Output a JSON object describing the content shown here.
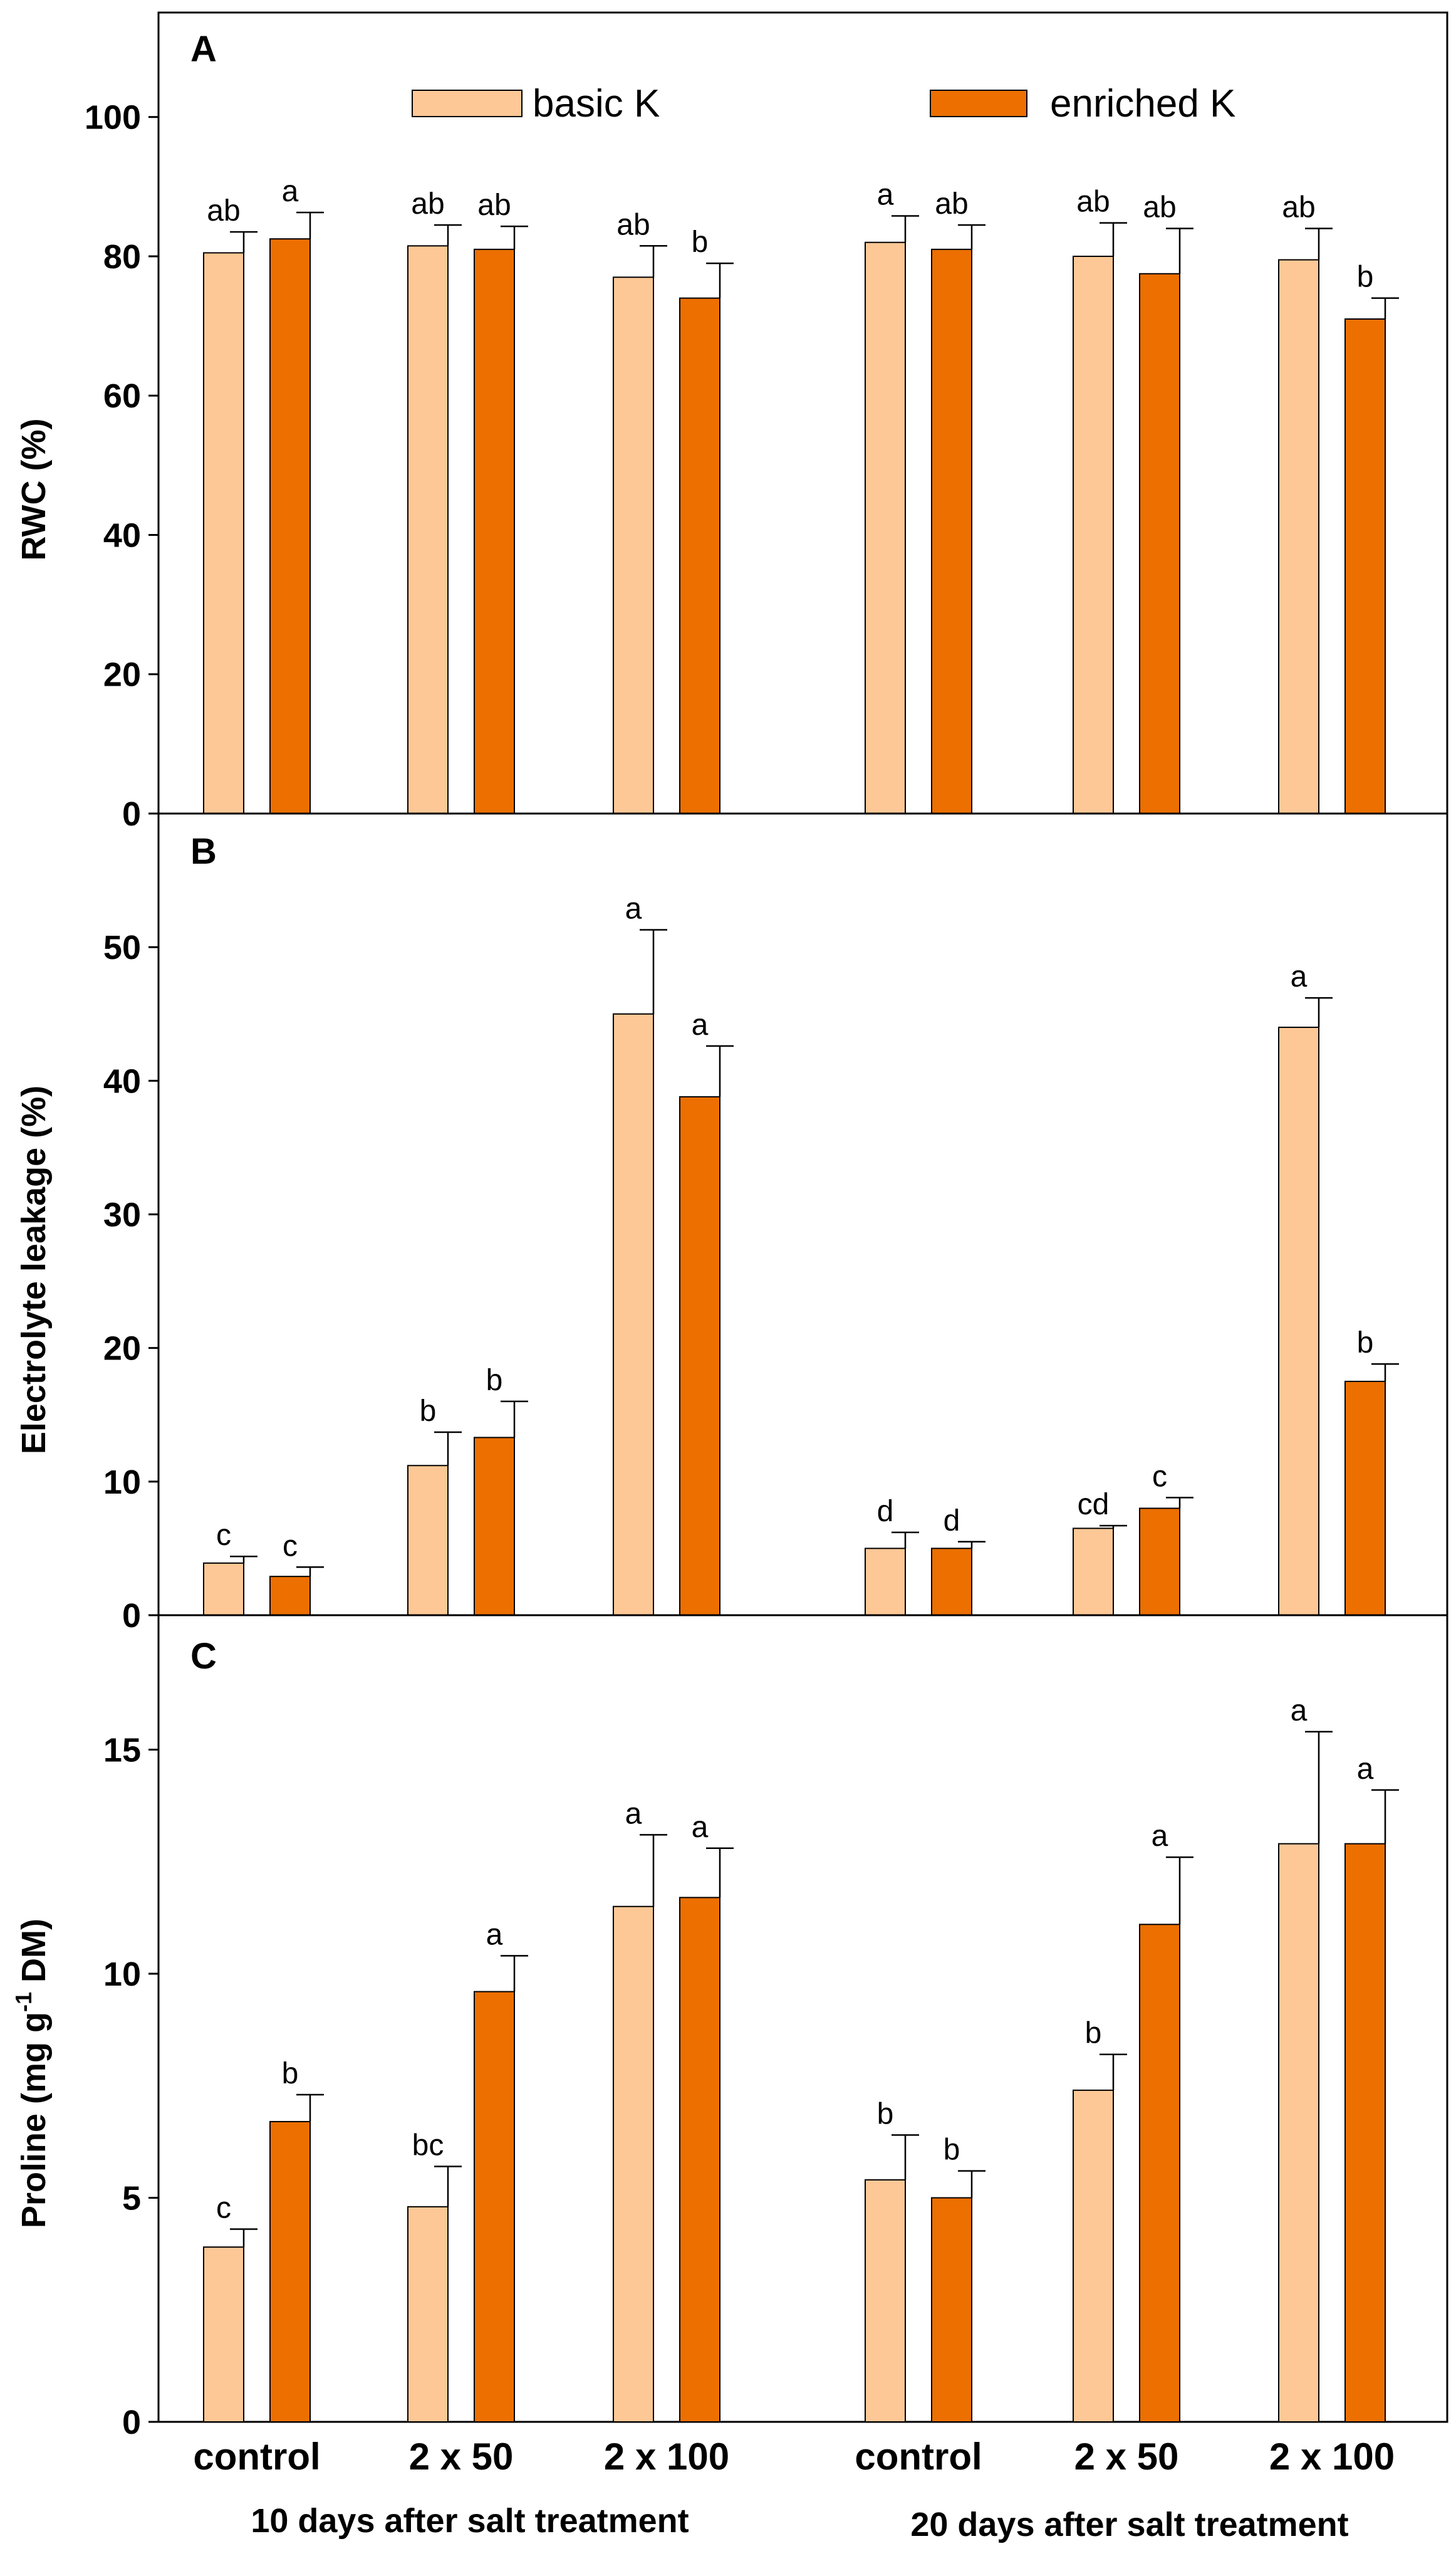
{
  "chart_data": {
    "type": "bar",
    "categories": [
      "control",
      "2 x 50",
      "2 x 100",
      "control",
      "2 x 50",
      "2 x 100"
    ],
    "groups": [
      "10 days after salt treatment",
      "20 days after salt treatment"
    ],
    "legend": [
      {
        "name": "basic K",
        "color": "#fdc896"
      },
      {
        "name": "enriched K",
        "color": "#ec6f00"
      }
    ],
    "panels": [
      {
        "label": "A",
        "ylabel": "RWC (%)",
        "ylim": [
          0,
          115
        ],
        "yticks": [
          0,
          20,
          40,
          60,
          80,
          100
        ],
        "series": [
          {
            "name": "basic K",
            "values": [
              80.5,
              81.5,
              77,
              82,
              80,
              79.5
            ],
            "errors": [
              3,
              3,
              4.5,
              3.8,
              4.8,
              4.5
            ],
            "letters": [
              "ab",
              "ab",
              "ab",
              "a",
              "ab",
              "ab"
            ]
          },
          {
            "name": "enriched K",
            "values": [
              82.5,
              81,
              74,
              81,
              77.5,
              71
            ],
            "errors": [
              3.8,
              3.3,
              5,
              3.5,
              6.5,
              3
            ],
            "letters": [
              "a",
              "ab",
              "b",
              "ab",
              "ab",
              "b"
            ]
          }
        ]
      },
      {
        "label": "B",
        "ylabel": "Electrolyte leakage (%)",
        "ylim": [
          0,
          60
        ],
        "yticks": [
          0,
          10,
          20,
          30,
          40,
          50
        ],
        "series": [
          {
            "name": "basic K",
            "values": [
              3.9,
              11.2,
              45,
              5,
              6.5,
              44
            ],
            "errors": [
              0.5,
              2.5,
              6.3,
              1.2,
              0.2,
              2.2
            ],
            "letters": [
              "c",
              "b",
              "a",
              "d",
              "cd",
              "a"
            ]
          },
          {
            "name": "enriched K",
            "values": [
              2.9,
              13.3,
              38.8,
              5,
              8,
              17.5
            ],
            "errors": [
              0.7,
              2.7,
              3.8,
              0.5,
              0.8,
              1.3
            ],
            "letters": [
              "c",
              "b",
              "a",
              "d",
              "c",
              "b"
            ]
          }
        ]
      },
      {
        "label": "C",
        "ylabel": "Proline (mg g-1 DM)",
        "ylabel_parts": [
          "Proline (mg g",
          "-1",
          " DM)"
        ],
        "ylim": [
          0,
          18
        ],
        "yticks": [
          0,
          5,
          10,
          15
        ],
        "series": [
          {
            "name": "basic K",
            "values": [
              3.9,
              4.8,
              11.5,
              5.4,
              7.4,
              12.9
            ],
            "errors": [
              0.4,
              0.9,
              1.6,
              1,
              0.8,
              2.5
            ],
            "letters": [
              "c",
              "bc",
              "a",
              "b",
              "b",
              "a"
            ]
          },
          {
            "name": "enriched K",
            "values": [
              6.7,
              9.6,
              11.7,
              5,
              11.1,
              12.9
            ],
            "errors": [
              0.6,
              0.8,
              1.1,
              0.6,
              1.5,
              1.2
            ],
            "letters": [
              "b",
              "a",
              "a",
              "b",
              "a",
              "a"
            ]
          }
        ]
      }
    ]
  }
}
